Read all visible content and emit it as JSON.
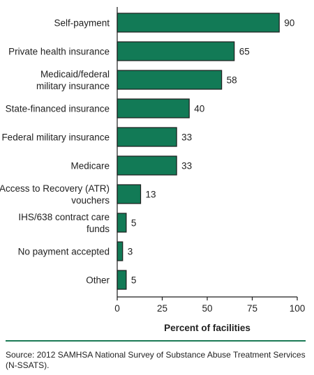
{
  "colors": {
    "bar_fill": "#127a56",
    "bar_stroke": "#1d1d1d",
    "rule": "#1a7a55"
  },
  "chart_data": {
    "type": "bar",
    "orientation": "horizontal",
    "categories": [
      [
        "Self-payment"
      ],
      [
        "Private health insurance"
      ],
      [
        "Medicaid/federal",
        "military insurance"
      ],
      [
        "State-financed insurance"
      ],
      [
        "Federal military insurance"
      ],
      [
        "Medicare"
      ],
      [
        "Access to Recovery (ATR)",
        "vouchers"
      ],
      [
        "IHS/638 contract care",
        "funds"
      ],
      [
        "No payment accepted"
      ],
      [
        "Other"
      ]
    ],
    "values": [
      90,
      65,
      58,
      40,
      33,
      33,
      13,
      5,
      3,
      5
    ],
    "xlabel": "Percent of facilities",
    "xlim": [
      0,
      100
    ],
    "xticks": [
      0,
      25,
      50,
      75,
      100
    ],
    "grid": false,
    "legend": "none"
  },
  "footer": {
    "source": "Source: 2012 SAMHSA National Survey of Substance Abuse Treatment Services (N-SSATS)."
  }
}
